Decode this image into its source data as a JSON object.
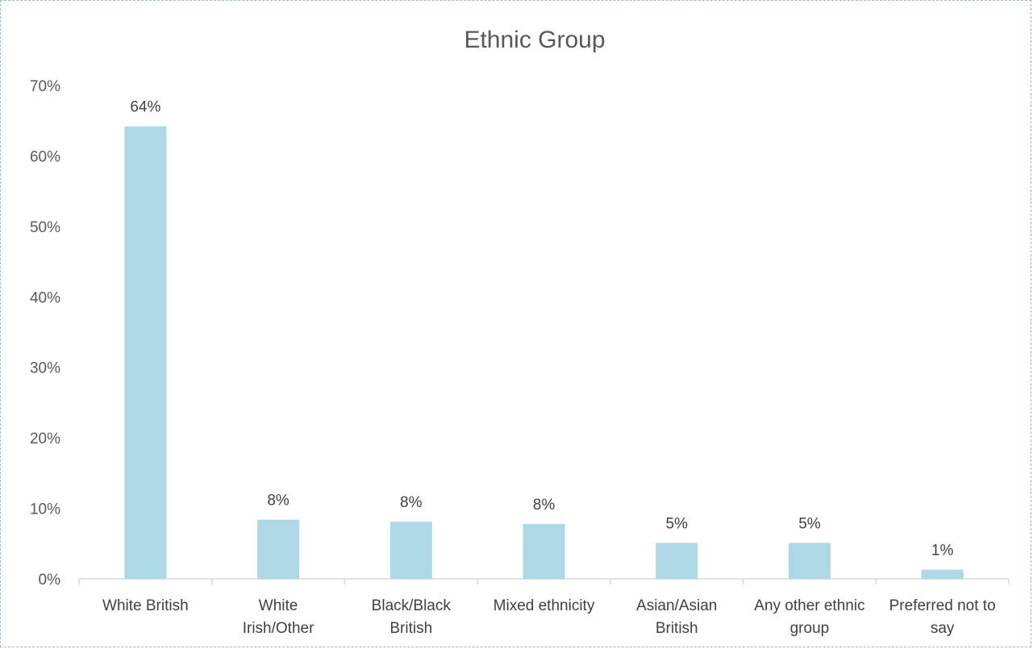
{
  "colors": {
    "bar": "#add8e6",
    "axis": "#d9d9d9",
    "text": "#595959"
  },
  "chart_data": {
    "type": "bar",
    "title": "Ethnic Group",
    "xlabel": "",
    "ylabel": "",
    "categories": [
      [
        "White British"
      ],
      [
        "White",
        "Irish/Other"
      ],
      [
        "Black/Black",
        "British"
      ],
      [
        "Mixed ethnicity"
      ],
      [
        "Asian/Asian",
        "British"
      ],
      [
        "Any other ethnic",
        "group"
      ],
      [
        "Preferred not to",
        "say"
      ]
    ],
    "values": [
      0.642,
      0.084,
      0.081,
      0.078,
      0.051,
      0.051,
      0.013
    ],
    "data_labels": [
      "64%",
      "8%",
      "8%",
      "8%",
      "5%",
      "5%",
      "1%"
    ],
    "ylim": [
      0,
      0.7
    ],
    "yticks": [
      0,
      0.1,
      0.2,
      0.3,
      0.4,
      0.5,
      0.6,
      0.7
    ],
    "ytick_labels": [
      "0%",
      "10%",
      "20%",
      "30%",
      "40%",
      "50%",
      "60%",
      "70%"
    ],
    "grid": false,
    "legend": "none"
  }
}
